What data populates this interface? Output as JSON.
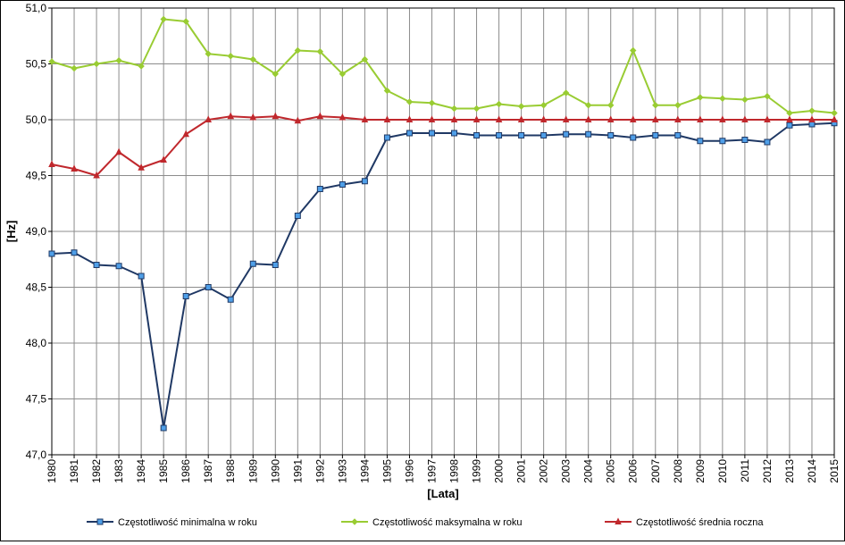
{
  "chart_data": {
    "type": "line",
    "xlabel": "[Lata]",
    "ylabel": "[Hz]",
    "ylim": [
      47.0,
      51.0
    ],
    "yticks": [
      "47,0",
      "47,5",
      "48,0",
      "48,5",
      "49,0",
      "49,5",
      "50,0",
      "50,5",
      "51,0"
    ],
    "grid": true,
    "legend_position": "bottom",
    "categories": [
      "1980",
      "1981",
      "1982",
      "1983",
      "1984",
      "1985",
      "1986",
      "1987",
      "1988",
      "1989",
      "1990",
      "1991",
      "1992",
      "1993",
      "1994",
      "1995",
      "1996",
      "1997",
      "1998",
      "1999",
      "2000",
      "2001",
      "2002",
      "2003",
      "2004",
      "2005",
      "2006",
      "2007",
      "2008",
      "2009",
      "2010",
      "2011",
      "2012",
      "2013",
      "2014",
      "2015"
    ],
    "series": [
      {
        "name": "Częstotliwość minimalna w roku",
        "color": "#1f3864",
        "marker": "square",
        "marker_fill": "#4f9fe8",
        "values": [
          48.8,
          48.81,
          48.7,
          48.69,
          48.6,
          47.24,
          48.42,
          48.5,
          48.39,
          48.71,
          48.7,
          49.14,
          49.38,
          49.42,
          49.45,
          49.84,
          49.88,
          49.88,
          49.88,
          49.86,
          49.86,
          49.86,
          49.86,
          49.87,
          49.87,
          49.86,
          49.84,
          49.86,
          49.86,
          49.81,
          49.81,
          49.82,
          49.8,
          49.95,
          49.96,
          49.97
        ]
      },
      {
        "name": "Częstotliwość maksymalna w roku",
        "color": "#99cc33",
        "marker": "diamond",
        "marker_fill": "#99cc33",
        "values": [
          50.52,
          50.46,
          50.5,
          50.53,
          50.48,
          50.9,
          50.88,
          50.59,
          50.57,
          50.54,
          50.41,
          50.62,
          50.61,
          50.41,
          50.54,
          50.26,
          50.16,
          50.15,
          50.1,
          50.1,
          50.14,
          50.12,
          50.13,
          50.24,
          50.13,
          50.13,
          50.62,
          50.13,
          50.13,
          50.2,
          50.19,
          50.18,
          50.21,
          50.06,
          50.08,
          50.06
        ]
      },
      {
        "name": "Częstotliwość średnia roczna",
        "color": "#c0282d",
        "marker": "triangle",
        "marker_fill": "#c0282d",
        "values": [
          49.6,
          49.56,
          49.5,
          49.71,
          49.57,
          49.64,
          49.87,
          50.0,
          50.03,
          50.02,
          50.03,
          49.99,
          50.03,
          50.02,
          50.0,
          50.0,
          50.0,
          50.0,
          50.0,
          50.0,
          50.0,
          50.0,
          50.0,
          50.0,
          50.0,
          50.0,
          50.0,
          50.0,
          50.0,
          50.0,
          50.0,
          50.0,
          50.0,
          50.0,
          50.0,
          50.0
        ]
      }
    ]
  }
}
